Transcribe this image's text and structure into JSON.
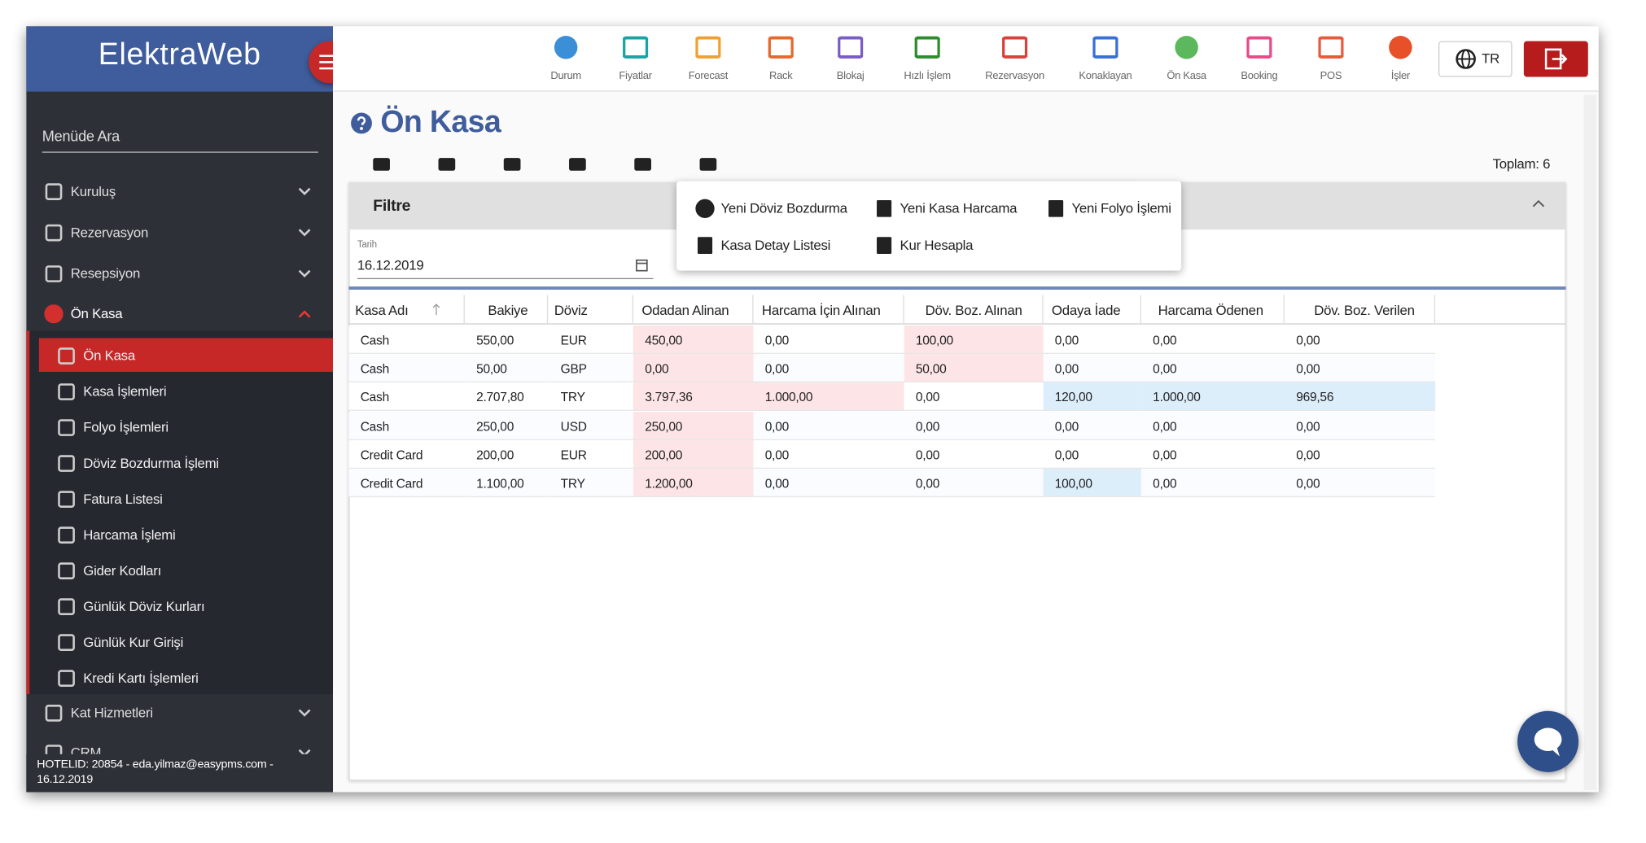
{
  "brand": "ElektraWeb",
  "nav": [
    "Durum",
    "Fiyatlar",
    "Forecast",
    "Rack",
    "Blokaj",
    "Hızlı İşlem",
    "Rezervasyon",
    "Konaklayan",
    "Ön Kasa",
    "Booking",
    "POS",
    "İşler"
  ],
  "language": "TR",
  "sidebar": {
    "search": "Menüde Ara",
    "items": [
      "Kuruluş",
      "Rezervasyon",
      "Resepsiyon",
      "Ön Kasa"
    ],
    "submenu": [
      "Ön Kasa",
      "Kasa İşlemleri",
      "Folyo İşlemleri",
      "Döviz Bozdurma İşlemi",
      "Fatura Listesi",
      "Harcama İşlemi",
      "Gider Kodları",
      "Günlük Döviz Kurları",
      "Günlük Kur Girişi",
      "Kredi Kartı İşlemleri"
    ],
    "after": [
      "Kat Hizmetleri",
      "CRM"
    ],
    "footer": "HOTELID: 20854 - eda.yilmaz@easypms.com - 16.12.2019"
  },
  "page": {
    "title": "Ön Kasa",
    "total": "Toplam: 6"
  },
  "filter": {
    "title": "Filtre",
    "date_label": "Tarih",
    "date": "16.12.2019"
  },
  "actions": [
    "Yeni Döviz Bozdurma",
    "Yeni Kasa Harcama",
    "Yeni Folyo İşlemi",
    "Kasa Detay Listesi",
    "Kur Hesapla"
  ],
  "table": {
    "columns": [
      "Kasa Adı",
      "Bakiye",
      "Döviz",
      "Odadan Alinan",
      "Harcama İçin Alınan",
      "Döv. Boz. Alınan",
      "Odaya İade",
      "Harcama Ödenen",
      "Döv. Boz. Verilen"
    ],
    "rows": [
      [
        "Cash",
        "550,00",
        "EUR",
        "450,00",
        "0,00",
        "100,00",
        "0,00",
        "0,00",
        "0,00"
      ],
      [
        "Cash",
        "50,00",
        "GBP",
        "0,00",
        "0,00",
        "50,00",
        "0,00",
        "0,00",
        "0,00"
      ],
      [
        "Cash",
        "2.707,80",
        "TRY",
        "3.797,36",
        "1.000,00",
        "0,00",
        "120,00",
        "1.000,00",
        "969,56"
      ],
      [
        "Cash",
        "250,00",
        "USD",
        "250,00",
        "0,00",
        "0,00",
        "0,00",
        "0,00",
        "0,00"
      ],
      [
        "Credit Card",
        "200,00",
        "EUR",
        "200,00",
        "0,00",
        "0,00",
        "0,00",
        "0,00",
        "0,00"
      ],
      [
        "Credit Card",
        "1.100,00",
        "TRY",
        "1.200,00",
        "0,00",
        "0,00",
        "100,00",
        "0,00",
        "0,00"
      ]
    ]
  }
}
